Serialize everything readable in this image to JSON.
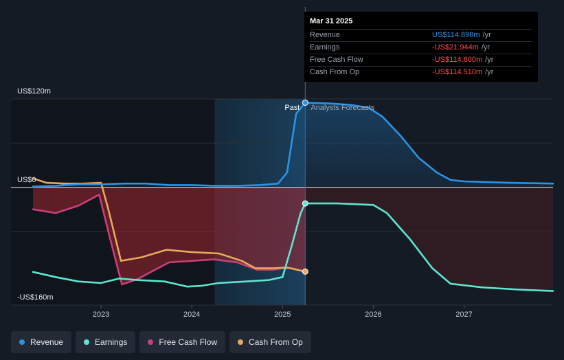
{
  "chart_data": {
    "type": "line",
    "y_unit_labels": [
      "US$120m",
      "US$0",
      "-US$160m"
    ],
    "ylim": [
      -160,
      120
    ],
    "xlim": [
      2022.25,
      2027.98
    ],
    "x_ticks": [
      {
        "value": 2023,
        "label": "2023"
      },
      {
        "value": 2024,
        "label": "2024"
      },
      {
        "value": 2025,
        "label": "2025"
      },
      {
        "value": 2026,
        "label": "2026"
      },
      {
        "value": 2027,
        "label": "2027"
      }
    ],
    "past_label": "Past",
    "forecast_label": "Analysts Forecasts",
    "divider_x": 2025.25,
    "highlight_start_x": 2024.25,
    "series": [
      {
        "name": "Revenue",
        "color": "#2b93e6",
        "points": [
          [
            2022.25,
            1
          ],
          [
            2022.5,
            2
          ],
          [
            2022.75,
            4
          ],
          [
            2023.0,
            4
          ],
          [
            2023.25,
            5
          ],
          [
            2023.5,
            5
          ],
          [
            2023.75,
            3
          ],
          [
            2024.0,
            3
          ],
          [
            2024.25,
            2
          ],
          [
            2024.5,
            2
          ],
          [
            2024.75,
            3
          ],
          [
            2024.95,
            5
          ],
          [
            2025.05,
            20
          ],
          [
            2025.15,
            100
          ],
          [
            2025.25,
            114.898
          ],
          [
            2025.5,
            114
          ],
          [
            2025.75,
            112
          ],
          [
            2025.95,
            108
          ],
          [
            2026.1,
            96
          ],
          [
            2026.3,
            70
          ],
          [
            2026.5,
            40
          ],
          [
            2026.7,
            20
          ],
          [
            2026.85,
            10
          ],
          [
            2027.0,
            8
          ],
          [
            2027.5,
            6
          ],
          [
            2027.98,
            5
          ]
        ]
      },
      {
        "name": "Earnings",
        "color": "#5ee5d0",
        "points": [
          [
            2022.25,
            -115
          ],
          [
            2022.5,
            -122
          ],
          [
            2022.75,
            -128
          ],
          [
            2023.0,
            -130
          ],
          [
            2023.2,
            -124
          ],
          [
            2023.4,
            -126
          ],
          [
            2023.7,
            -128
          ],
          [
            2023.95,
            -135
          ],
          [
            2024.1,
            -134
          ],
          [
            2024.3,
            -130
          ],
          [
            2024.6,
            -128
          ],
          [
            2024.85,
            -126
          ],
          [
            2025.0,
            -122
          ],
          [
            2025.1,
            -80
          ],
          [
            2025.2,
            -35
          ],
          [
            2025.25,
            -21.944
          ],
          [
            2025.6,
            -22
          ],
          [
            2026.0,
            -24
          ],
          [
            2026.15,
            -35
          ],
          [
            2026.4,
            -70
          ],
          [
            2026.65,
            -110
          ],
          [
            2026.85,
            -131
          ],
          [
            2027.2,
            -136
          ],
          [
            2027.6,
            -139
          ],
          [
            2027.98,
            -141
          ]
        ]
      },
      {
        "name": "Free Cash Flow",
        "color": "#c8407a",
        "points": [
          [
            2022.25,
            -30
          ],
          [
            2022.5,
            -35
          ],
          [
            2022.75,
            -25
          ],
          [
            2022.98,
            -10
          ],
          [
            2023.1,
            -70
          ],
          [
            2023.23,
            -132
          ],
          [
            2023.4,
            -125
          ],
          [
            2023.55,
            -115
          ],
          [
            2023.75,
            -102
          ],
          [
            2024.0,
            -100
          ],
          [
            2024.25,
            -98
          ],
          [
            2024.5,
            -102
          ],
          [
            2024.72,
            -112
          ],
          [
            2024.9,
            -112
          ],
          [
            2025.0,
            -110
          ],
          [
            2025.1,
            -110
          ],
          [
            2025.25,
            -114.6
          ]
        ]
      },
      {
        "name": "Cash From Op",
        "color": "#e8a95c",
        "points": [
          [
            2022.25,
            12
          ],
          [
            2022.4,
            6
          ],
          [
            2022.6,
            5
          ],
          [
            2022.8,
            5
          ],
          [
            2023.0,
            6
          ],
          [
            2023.08,
            -30
          ],
          [
            2023.22,
            -100
          ],
          [
            2023.45,
            -95
          ],
          [
            2023.72,
            -85
          ],
          [
            2024.0,
            -88
          ],
          [
            2024.3,
            -90
          ],
          [
            2024.55,
            -100
          ],
          [
            2024.7,
            -110
          ],
          [
            2024.9,
            -110
          ],
          [
            2025.05,
            -109
          ],
          [
            2025.25,
            -114.51
          ]
        ]
      }
    ]
  },
  "tooltip": {
    "date": "Mar 31 2025",
    "rows": [
      {
        "name": "Revenue",
        "value": "US$114.898m",
        "unit": "/yr",
        "color": "#2b93e6"
      },
      {
        "name": "Earnings",
        "value": "-US$21.944m",
        "unit": "/yr",
        "color": "#ff4d4d"
      },
      {
        "name": "Free Cash Flow",
        "value": "-US$114.600m",
        "unit": "/yr",
        "color": "#ff4d4d"
      },
      {
        "name": "Cash From Op",
        "value": "-US$114.510m",
        "unit": "/yr",
        "color": "#ff4d4d"
      }
    ]
  },
  "legend": [
    {
      "label": "Revenue",
      "color": "#2b93e6"
    },
    {
      "label": "Earnings",
      "color": "#5ee5d0"
    },
    {
      "label": "Free Cash Flow",
      "color": "#c8407a"
    },
    {
      "label": "Cash From Op",
      "color": "#e8a95c"
    }
  ]
}
